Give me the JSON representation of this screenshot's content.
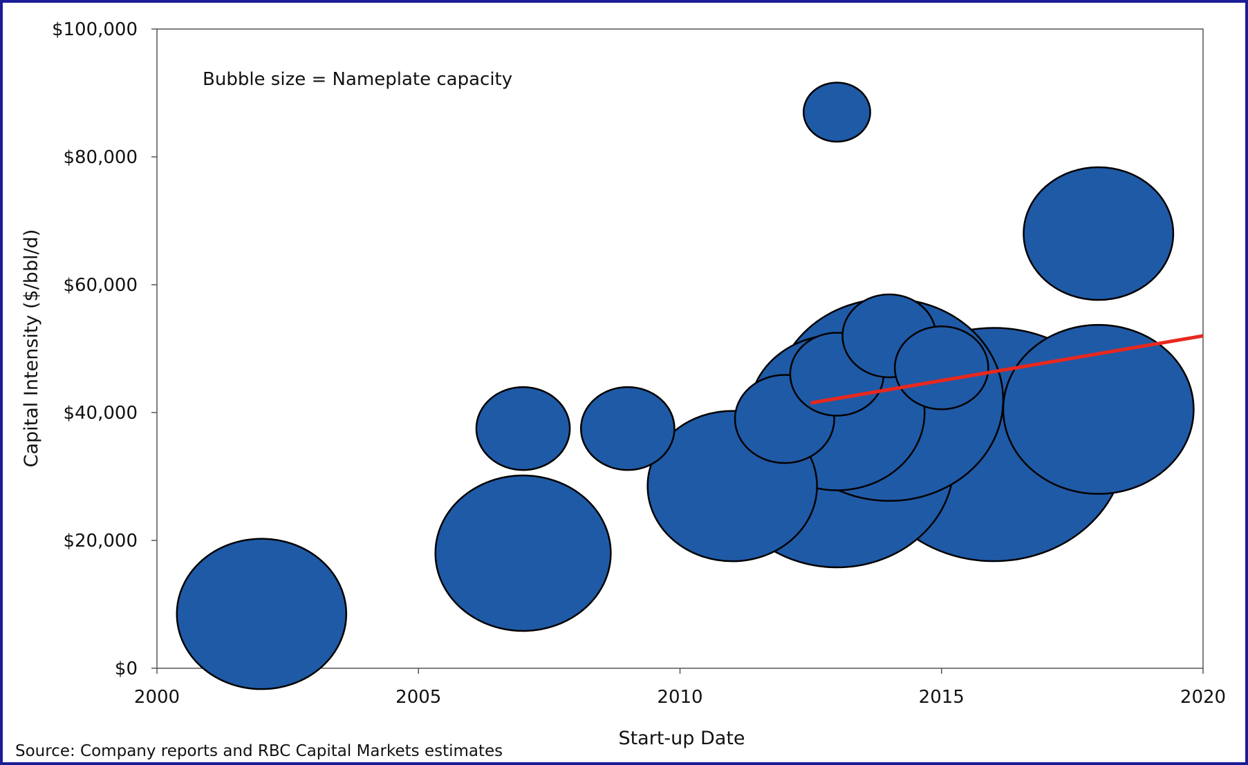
{
  "chart_data": {
    "type": "bubble",
    "title": "",
    "xlabel": "Start-up Date",
    "ylabel": "Capital Intensity ($/bbl/d)",
    "xlim": [
      2000,
      2020
    ],
    "ylim": [
      0,
      100000
    ],
    "x_ticks": [
      2000,
      2005,
      2010,
      2015,
      2020
    ],
    "y_ticks": [
      0,
      20000,
      40000,
      60000,
      80000,
      100000
    ],
    "x_tick_labels": [
      "2000",
      "2005",
      "2010",
      "2015",
      "2020"
    ],
    "y_tick_labels": [
      "$0",
      "$20,000",
      "$40,000",
      "$60,000",
      "$80,000",
      "$100,000"
    ],
    "grid": false,
    "annotation": "Bubble size = Nameplate capacity",
    "source": "Source: Company reports and RBC Capital Markets estimates",
    "bubble_color": "#1f5aa6",
    "bubble_outline": "#000000",
    "trend_color": "#e8281e",
    "points": [
      {
        "x": 2002,
        "y": 8500,
        "size": 145
      },
      {
        "x": 2007,
        "y": 37500,
        "size": 80
      },
      {
        "x": 2007,
        "y": 18000,
        "size": 150
      },
      {
        "x": 2009,
        "y": 37500,
        "size": 80
      },
      {
        "x": 2011,
        "y": 28500,
        "size": 145
      },
      {
        "x": 2012,
        "y": 39000,
        "size": 85
      },
      {
        "x": 2013,
        "y": 87000,
        "size": 57
      },
      {
        "x": 2013,
        "y": 40000,
        "size": 150
      },
      {
        "x": 2013,
        "y": 46000,
        "size": 80
      },
      {
        "x": 2013,
        "y": 32000,
        "size": 200
      },
      {
        "x": 2014,
        "y": 52000,
        "size": 80
      },
      {
        "x": 2014,
        "y": 42000,
        "size": 195
      },
      {
        "x": 2015,
        "y": 47000,
        "size": 80
      },
      {
        "x": 2016,
        "y": 35000,
        "size": 225
      },
      {
        "x": 2018,
        "y": 68000,
        "size": 128
      },
      {
        "x": 2018,
        "y": 40500,
        "size": 163
      }
    ],
    "trendline": {
      "x": [
        2012.5,
        2020
      ],
      "y": [
        41500,
        52000
      ]
    }
  }
}
